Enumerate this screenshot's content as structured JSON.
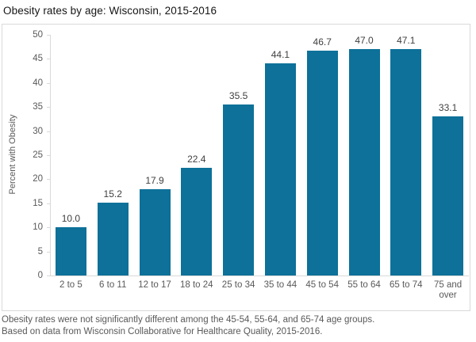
{
  "title": "Obesity rates by age: Wisconsin, 2015-2016",
  "footnotes": {
    "line1": "Obesity rates were not significantly different among the 45-54, 55-64, and 65-74 age groups.",
    "line2": "Based on data from Wisconsin Collaborative for Healthcare Quality, 2015-2016."
  },
  "colors": {
    "bar": "#0d7199",
    "axis": "#d9d9d9",
    "tick_label": "#595959",
    "value_label": "#404040",
    "footnote": "#595959",
    "title": "#151515"
  },
  "chart_data": {
    "type": "bar",
    "title": "Obesity rates by age: Wisconsin, 2015-2016",
    "categories": [
      "2 to 5",
      "6 to 11",
      "12 to 17",
      "18 to 24",
      "25 to 34",
      "35 to 44",
      "45 to 54",
      "55 to 64",
      "65 to 74",
      "75 and over"
    ],
    "values": [
      10.0,
      15.2,
      17.9,
      22.4,
      35.5,
      44.1,
      46.7,
      47.0,
      47.1,
      33.1
    ],
    "value_labels": [
      "10.0",
      "15.2",
      "17.9",
      "22.4",
      "35.5",
      "44.1",
      "46.7",
      "47.0",
      "47.1",
      "33.1"
    ],
    "xlabel": "",
    "ylabel": "Percent with Obesity",
    "ylim": [
      0,
      50
    ],
    "ytick_step": 5,
    "yticks": [
      0,
      5,
      10,
      15,
      20,
      25,
      30,
      35,
      40,
      45,
      50
    ],
    "grid": false,
    "legend": null,
    "bar_color": "#0d7199"
  }
}
